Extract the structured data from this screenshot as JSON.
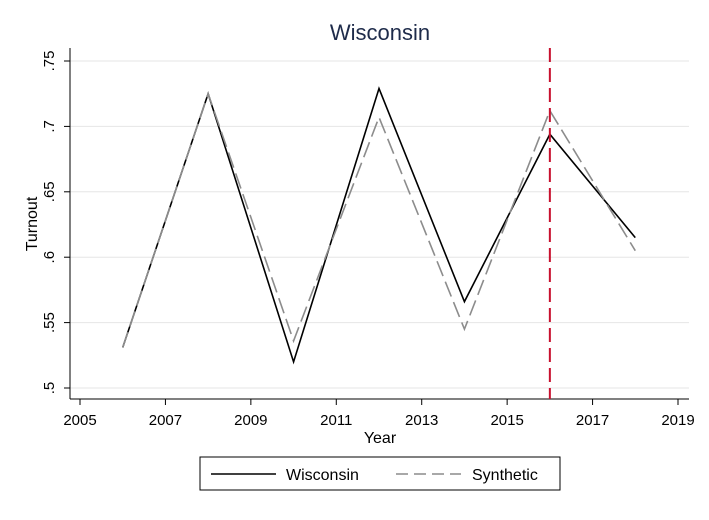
{
  "chart_data": {
    "type": "line",
    "title": "Wisconsin",
    "xlabel": "Year",
    "ylabel": "Turnout",
    "xlim": [
      2005,
      2019
    ],
    "ylim": [
      0.5,
      0.75
    ],
    "x_ticks": [
      2005,
      2007,
      2009,
      2011,
      2013,
      2015,
      2017,
      2019
    ],
    "x_tick_labels": [
      "2005",
      "2007",
      "2009",
      "2011",
      "2013",
      "2015",
      "2017",
      "2019"
    ],
    "y_ticks": [
      0.5,
      0.55,
      0.6,
      0.65,
      0.7,
      0.75
    ],
    "y_tick_labels": [
      ".5",
      ".55",
      ".6",
      ".65",
      ".7",
      ".75"
    ],
    "grid": "horizontal",
    "legend_position": "bottom",
    "x": [
      2006,
      2008,
      2010,
      2012,
      2014,
      2016,
      2018
    ],
    "series": [
      {
        "name": "Wisconsin",
        "values": [
          0.531,
          0.725,
          0.52,
          0.729,
          0.566,
          0.694,
          0.615
        ],
        "color": "#000000",
        "style": "solid"
      },
      {
        "name": "Synthetic",
        "values": [
          0.531,
          0.725,
          0.536,
          0.707,
          0.545,
          0.712,
          0.605
        ],
        "color": "#8c8c8c",
        "style": "dashed"
      }
    ],
    "reference_line": {
      "x": 2016,
      "color": "#c8102e",
      "style": "dashed"
    }
  }
}
